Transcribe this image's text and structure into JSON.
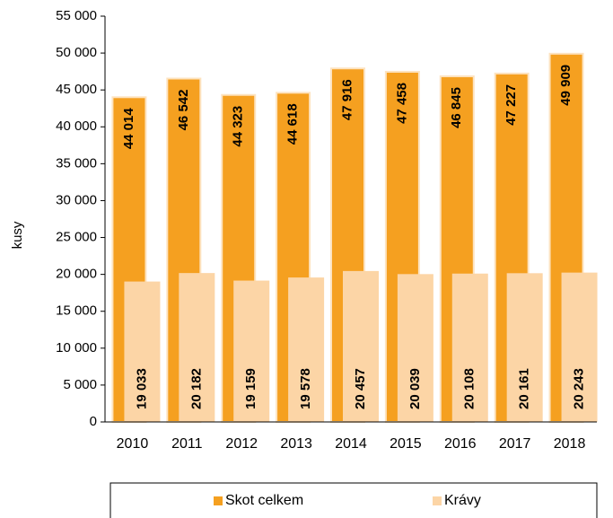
{
  "chart_data": {
    "type": "bar",
    "y_label": "kusy",
    "categories": [
      "2010",
      "2011",
      "2012",
      "2013",
      "2014",
      "2015",
      "2016",
      "2017",
      "2018"
    ],
    "series": [
      {
        "name": "Skot celkem",
        "color": "#f5a020",
        "values": [
          44014,
          46542,
          44323,
          44618,
          47916,
          47458,
          46845,
          47227,
          49909
        ],
        "value_labels": [
          "44 014",
          "46 542",
          "44 323",
          "44 618",
          "47 916",
          "47 458",
          "46 845",
          "47 227",
          "49 909"
        ]
      },
      {
        "name": "Krávy",
        "color": "#fcd5a6",
        "values": [
          19033,
          20182,
          19159,
          19578,
          20457,
          20039,
          20108,
          20161,
          20243
        ],
        "value_labels": [
          "19 033",
          "20 182",
          "19 159",
          "19 578",
          "20 457",
          "20 039",
          "20 108",
          "20 161",
          "20 243"
        ]
      }
    ],
    "ylim": [
      0,
      55000
    ],
    "yticks": [
      0,
      {
        "value": 5000,
        "label": "5 000"
      },
      {
        "value": 10000,
        "label": "10 000"
      },
      {
        "value": 15000,
        "label": "15 000"
      },
      {
        "value": 20000,
        "label": "20 000"
      },
      {
        "value": 25000,
        "label": "25 000"
      },
      {
        "value": 30000,
        "label": "30 000"
      },
      {
        "value": 35000,
        "label": "35 000"
      },
      {
        "value": 40000,
        "label": "40 000"
      },
      {
        "value": 45000,
        "label": "45 000"
      },
      {
        "value": 50000,
        "label": "50 000"
      },
      {
        "value": 55000,
        "label": "55 000"
      }
    ],
    "legend": "bottom"
  }
}
